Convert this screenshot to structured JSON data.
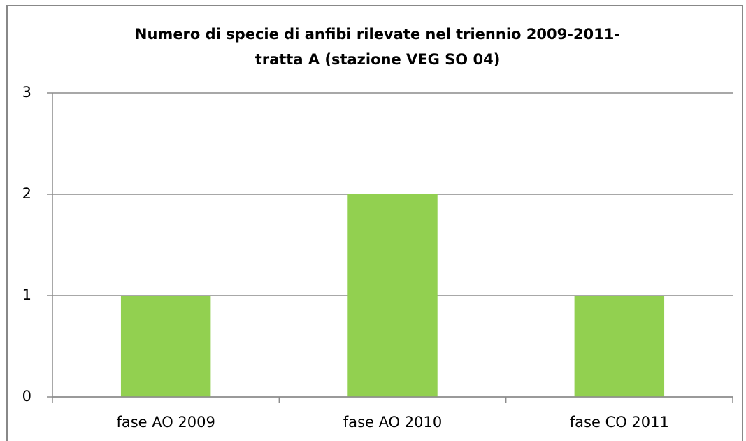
{
  "chart_data": {
    "type": "bar",
    "title": [
      "Numero di specie di anfibi rilevate nel triennio 2009-2011-",
      "tratta A (stazione VEG SO 04)"
    ],
    "categories": [
      "fase AO 2009",
      "fase AO 2010",
      "fase CO 2011"
    ],
    "values": [
      1,
      2,
      1
    ],
    "color": "#92d050",
    "ylim": [
      0,
      3
    ],
    "yticks": [
      0,
      1,
      2,
      3
    ],
    "grid": true
  }
}
